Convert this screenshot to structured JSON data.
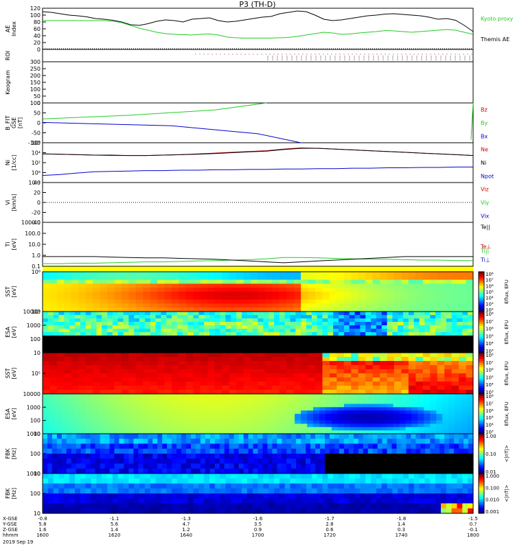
{
  "title": "P3 (TH-D)",
  "date_label": "2019 Sep 19",
  "colors": {
    "black": "#000000",
    "green": "#22cc22",
    "red": "#cc0000",
    "blue": "#0000cc"
  },
  "chart_data": [
    {
      "id": "ae",
      "type": "line",
      "ylabel": "AE Index",
      "ylim": [
        0,
        120
      ],
      "yticks": [
        "120",
        "100",
        "80",
        "60",
        "40",
        "20",
        "0"
      ],
      "legend": [
        {
          "name": "Kyoto proxy AE",
          "color": "#22cc22"
        },
        {
          "name": "Themis AE",
          "color": "#000000"
        }
      ],
      "series": [
        {
          "name": "Themis AE",
          "color": "#000000",
          "values": [
            110,
            108,
            104,
            100,
            98,
            95,
            90,
            88,
            85,
            80,
            72,
            70,
            75,
            82,
            86,
            84,
            80,
            88,
            90,
            92,
            84,
            80,
            82,
            86,
            90,
            94,
            96,
            104,
            108,
            112,
            110,
            100,
            88,
            84,
            86,
            90,
            94,
            98,
            100,
            103,
            104,
            102,
            100,
            98,
            94,
            88,
            90,
            85,
            70,
            52
          ]
        },
        {
          "name": "Kyoto proxy AE",
          "color": "#22cc22",
          "values": [
            84,
            84,
            84,
            84,
            84,
            84,
            84,
            84,
            82,
            78,
            70,
            62,
            56,
            50,
            46,
            44,
            43,
            42,
            44,
            45,
            42,
            36,
            34,
            33,
            33,
            33,
            33,
            34,
            35,
            38,
            42,
            46,
            50,
            48,
            44,
            45,
            48,
            50,
            52,
            55,
            54,
            52,
            50,
            52,
            54,
            56,
            58,
            56,
            50,
            44
          ]
        }
      ]
    },
    {
      "id": "roi",
      "type": "scatter",
      "ylabel": "ROI",
      "yticks": []
    },
    {
      "id": "keogram",
      "type": "heatmap",
      "ylabel": "Keogram",
      "ylim": [
        0,
        300
      ],
      "yticks": [
        "300",
        "250",
        "200",
        "150",
        "100",
        "50",
        "0"
      ]
    },
    {
      "id": "bfit",
      "type": "line",
      "ylabel": "B_FIT GSE [nT]",
      "ylim": [
        -100,
        100
      ],
      "yticks": [
        "100",
        "50",
        "0",
        "-50",
        "-100"
      ],
      "legend": [
        {
          "name": "Bz",
          "color": "#cc0000"
        },
        {
          "name": "By",
          "color": "#22cc22"
        },
        {
          "name": "Bx",
          "color": "#0000cc"
        }
      ],
      "series": [
        {
          "name": "By",
          "color": "#22cc22",
          "x": [
            0,
            0.2,
            0.4,
            0.52
          ],
          "values": [
            20,
            38,
            65,
            100
          ]
        },
        {
          "name": "Bx",
          "color": "#0000cc",
          "x": [
            0,
            0.3,
            0.5,
            0.6
          ],
          "values": [
            2,
            -15,
            -55,
            -100
          ]
        },
        {
          "name": "By",
          "color": "#22cc22",
          "x": [
            0.995,
            0.998,
            1.0
          ],
          "values": [
            -85,
            20,
            100
          ]
        }
      ]
    },
    {
      "id": "ni",
      "type": "line",
      "ylabel": "Ni [1/cc]",
      "yticks": [
        "10⁸",
        "10⁴",
        "10²",
        "10⁶",
        "10⁻²"
      ],
      "legend": [
        {
          "name": "Ne",
          "color": "#cc0000"
        },
        {
          "name": "Ni",
          "color": "#000000"
        },
        {
          "name": "Npot",
          "color": "#0000cc"
        }
      ],
      "series": [
        {
          "name": "Npot",
          "color": "#0000cc",
          "values": [
            18,
            20,
            24,
            27,
            28,
            29,
            30,
            30,
            31,
            31,
            32,
            32,
            33,
            33,
            34,
            34,
            35,
            35,
            36,
            36,
            37,
            37,
            38,
            38,
            39,
            39
          ]
        },
        {
          "name": "Ne",
          "color": "#cc0000",
          "values": [
            72,
            71,
            70,
            69,
            68,
            68,
            68,
            69,
            70,
            72,
            74,
            76,
            78,
            80,
            84,
            87,
            86,
            84,
            82,
            80,
            78,
            76,
            74,
            72,
            70,
            68
          ]
        },
        {
          "name": "Ni",
          "color": "#000000",
          "values": [
            72,
            71,
            70,
            69,
            69,
            68,
            68,
            69,
            70,
            71,
            73,
            75,
            77,
            79,
            83,
            86,
            86,
            84,
            82,
            80,
            78,
            76,
            74,
            72,
            70,
            68
          ]
        }
      ]
    },
    {
      "id": "vi",
      "type": "line",
      "ylabel": "Vi [km/s]",
      "ylim": [
        -40,
        40
      ],
      "yticks": [
        "40",
        "20",
        "0",
        "-20",
        "-40"
      ],
      "legend": [
        {
          "name": "Viz",
          "color": "#cc0000"
        },
        {
          "name": "Viy",
          "color": "#22cc22"
        },
        {
          "name": "Vix",
          "color": "#0000cc"
        }
      ]
    },
    {
      "id": "ti",
      "type": "line",
      "ylabel": "Ti [eV]",
      "yticks": [
        "1000.0",
        "100.0",
        "10.0",
        "1.0",
        "0.1"
      ],
      "legend": [
        {
          "name": "Te||",
          "color": "#000000"
        },
        {
          "name": "Te⊥",
          "color": "#cc0000"
        },
        {
          "name": "Ti||",
          "color": "#22cc22"
        },
        {
          "name": "Ti⊥",
          "color": "#0000cc"
        }
      ],
      "series": [
        {
          "name": "Ti||",
          "color": "#22cc22",
          "values": [
            6,
            6,
            7,
            7,
            8,
            9,
            10,
            10,
            11,
            12,
            13,
            14,
            15,
            17,
            20,
            20,
            19,
            18,
            17,
            16,
            16,
            15,
            14,
            14,
            13,
            13
          ]
        },
        {
          "name": "Te||",
          "color": "#000000",
          "values": [
            22,
            22,
            22,
            22,
            21,
            20,
            19,
            19,
            18,
            17,
            16,
            14,
            12,
            10,
            8,
            10,
            12,
            14,
            16,
            18,
            20,
            22,
            22,
            22,
            22,
            22
          ]
        }
      ]
    },
    {
      "id": "sst_omni",
      "type": "heatmap",
      "ylabel": "SST [eV]",
      "yticks": [
        "10⁶",
        "10⁴"
      ],
      "colorbar": [
        "10⁸",
        "10⁷",
        "10⁶",
        "10⁵",
        "10⁴",
        "10³",
        "10²"
      ],
      "cbar_label": "Eflux, EFU"
    },
    {
      "id": "esa_omni",
      "type": "heatmap",
      "ylabel": "ESA [eV]",
      "yticks": [
        "10000",
        "1000",
        "100",
        "10"
      ],
      "colorbar": [
        "10⁸",
        "10⁷",
        "10⁶",
        "10⁵",
        "10⁴",
        "10³"
      ],
      "cbar_label": "Eflux, EFU"
    },
    {
      "id": "sst_e",
      "type": "heatmap",
      "ylabel": "SST [eV]",
      "yticks": [
        "10⁵"
      ],
      "colorbar": [
        "10⁸",
        "10⁷",
        "10⁶",
        "10⁵",
        "10⁴",
        "10³"
      ],
      "cbar_label": "Eflux, EFU"
    },
    {
      "id": "esa_e",
      "type": "heatmap",
      "ylabel": "ESA [eV]",
      "yticks": [
        "10000",
        "1000",
        "100",
        "10"
      ],
      "colorbar": [
        "10⁸",
        "10⁷",
        "10⁶",
        "10⁵",
        "10⁴",
        "10³"
      ],
      "cbar_label": "Eflux, EFU"
    },
    {
      "id": "fbk_scm",
      "type": "heatmap",
      "ylabel": "FBK [Hz]",
      "yticks": [
        "1000",
        "100",
        "10"
      ],
      "colorbar": [
        "1.00",
        "0.10",
        "0.01"
      ],
      "cbar_label": "<|nT|>"
    },
    {
      "id": "fbk_efi",
      "type": "heatmap",
      "ylabel": "FBK [Hz]",
      "yticks": [
        "1000",
        "100",
        "10"
      ],
      "colorbar": [
        "1.000",
        "0.100",
        "0.010",
        "0.001"
      ],
      "cbar_label": "<|nT|>"
    }
  ],
  "xaxis": {
    "row_labels": [
      "X-GSE",
      "Y-GSE",
      "Z-GSE",
      "hhmm"
    ],
    "columns": [
      {
        "values": [
          "-0.8",
          "5.8",
          "1.6",
          "1600"
        ]
      },
      {
        "values": [
          "-1.1",
          "5.6",
          "1.4",
          "1620"
        ]
      },
      {
        "values": [
          "-1.3",
          "4.?",
          "1.2",
          "1640"
        ]
      },
      {
        "values": [
          "-1.6",
          "3.5",
          "0.9",
          "1700"
        ]
      },
      {
        "values": [
          "-1.7",
          "2.8",
          "0.6",
          "1720"
        ]
      },
      {
        "values": [
          "-1.8",
          "1.4",
          "0.3",
          "1740"
        ]
      },
      {
        "values": [
          "-1.5",
          "0.?",
          "-0.1",
          "1800"
        ]
      }
    ]
  }
}
